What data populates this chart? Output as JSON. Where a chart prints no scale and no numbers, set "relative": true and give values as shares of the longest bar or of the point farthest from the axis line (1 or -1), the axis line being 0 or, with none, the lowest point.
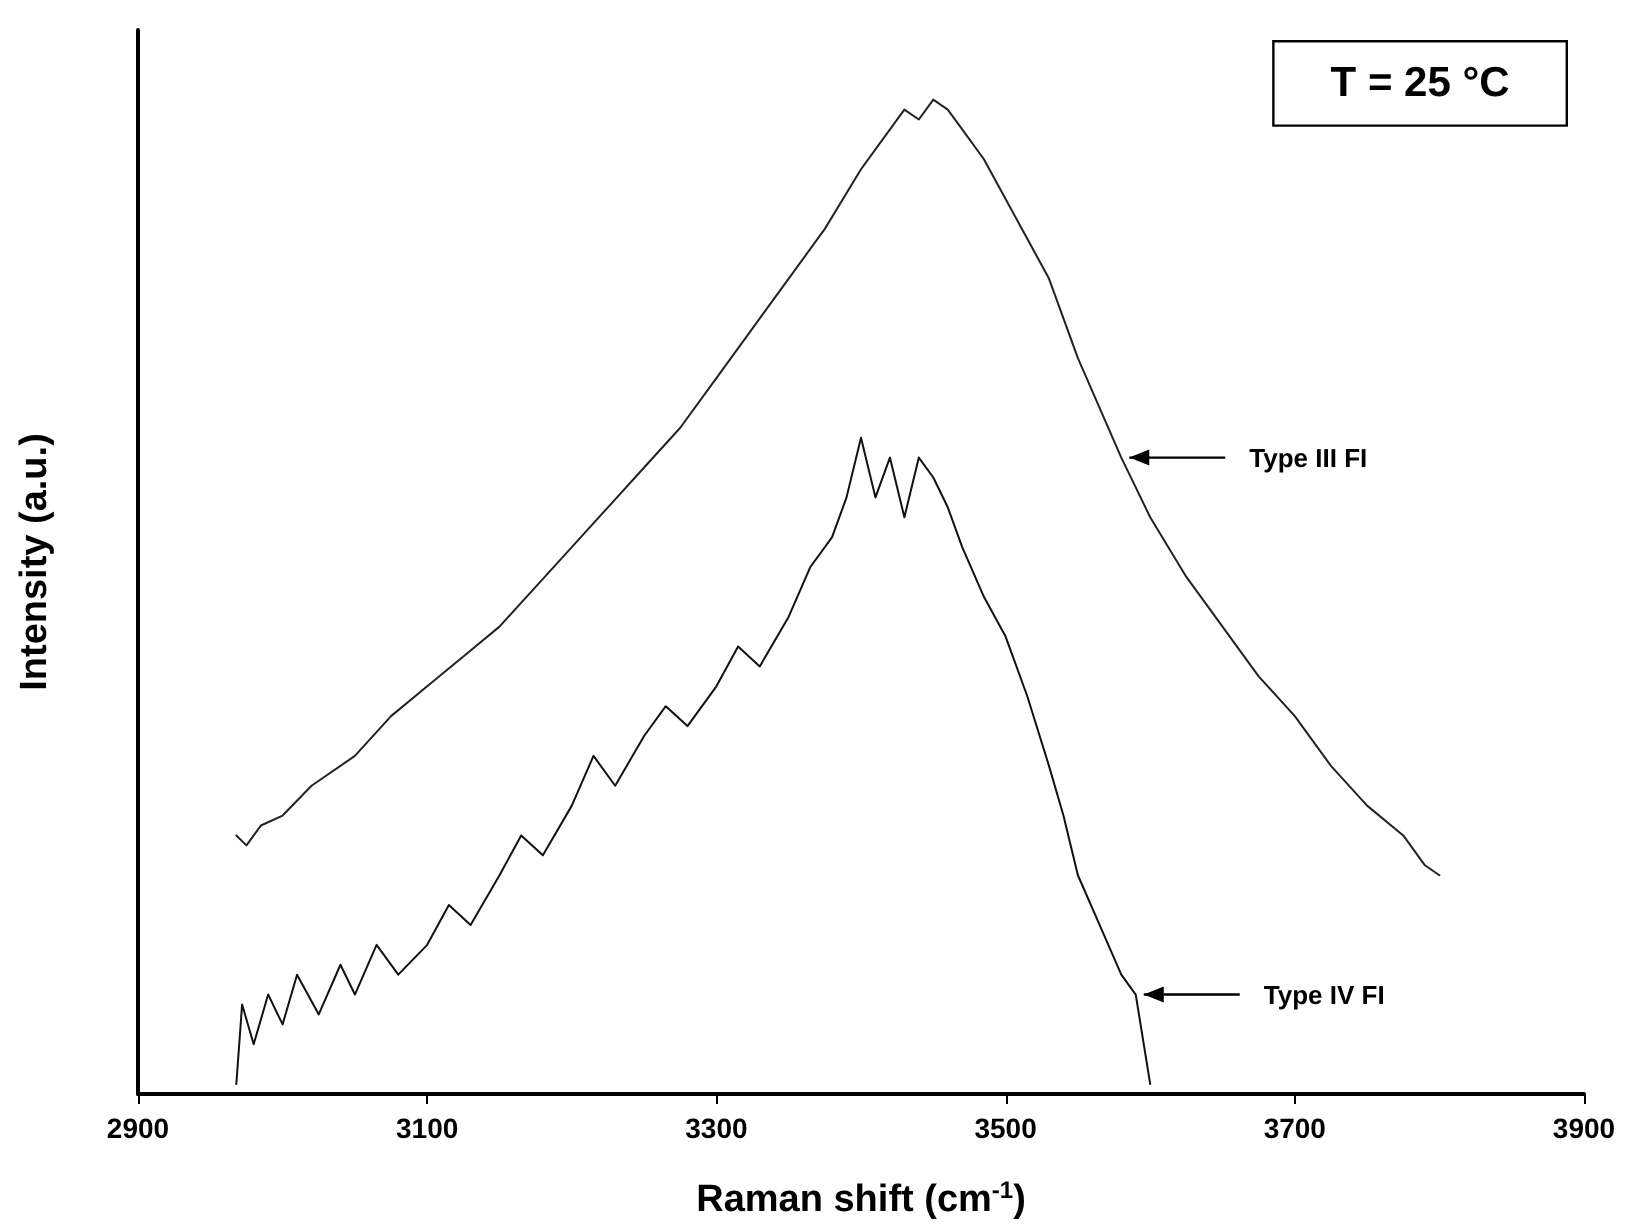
{
  "chart_data": {
    "type": "line",
    "xlabel": "Raman shift (cm$^{-1}$)",
    "ylabel": "Intensity (a.u.)",
    "relative": true,
    "xlim": [
      2900,
      3900
    ],
    "xticks": [
      2900,
      3100,
      3300,
      3500,
      3700,
      3900
    ],
    "grid": false,
    "marker": "none",
    "line_style": "solid",
    "annotations": [
      "T = 25 °C",
      {
        "text": "Type III FI",
        "x": 3580,
        "y": 0.64
      },
      {
        "text": "Type IV FI",
        "x": 3590,
        "y": 0.1
      }
    ],
    "series": [
      {
        "color": "#222222",
        "x": [
          2968,
          2975,
          2985,
          3000,
          3020,
          3050,
          3075,
          3100,
          3125,
          3150,
          3175,
          3200,
          3225,
          3250,
          3275,
          3300,
          3325,
          3350,
          3375,
          3400,
          3415,
          3430,
          3440,
          3450,
          3460,
          3470,
          3485,
          3500,
          3515,
          3530,
          3540,
          3550,
          3565,
          3580,
          3590,
          3600,
          3625,
          3650,
          3675,
          3700,
          3725,
          3750,
          3775,
          3790,
          3800
        ],
        "values": [
          0.26,
          0.25,
          0.27,
          0.28,
          0.31,
          0.34,
          0.38,
          0.41,
          0.44,
          0.47,
          0.51,
          0.55,
          0.59,
          0.63,
          0.67,
          0.72,
          0.77,
          0.82,
          0.87,
          0.93,
          0.96,
          0.99,
          0.98,
          1.0,
          0.99,
          0.97,
          0.94,
          0.9,
          0.86,
          0.82,
          0.78,
          0.74,
          0.69,
          0.64,
          0.61,
          0.58,
          0.52,
          0.47,
          0.42,
          0.38,
          0.33,
          0.29,
          0.26,
          0.23,
          0.22
        ]
      },
      {
        "color": "#111111",
        "x": [
          2968,
          2972,
          2980,
          2990,
          3000,
          3010,
          3025,
          3040,
          3050,
          3065,
          3080,
          3100,
          3115,
          3130,
          3150,
          3165,
          3180,
          3200,
          3215,
          3230,
          3250,
          3265,
          3280,
          3300,
          3315,
          3330,
          3350,
          3365,
          3380,
          3390,
          3400,
          3410,
          3420,
          3430,
          3440,
          3450,
          3460,
          3470,
          3485,
          3500,
          3515,
          3530,
          3540,
          3550,
          3565,
          3580,
          3590,
          3600
        ],
        "values": [
          0.01,
          0.09,
          0.05,
          0.1,
          0.07,
          0.12,
          0.08,
          0.13,
          0.1,
          0.15,
          0.12,
          0.15,
          0.19,
          0.17,
          0.22,
          0.26,
          0.24,
          0.29,
          0.34,
          0.31,
          0.36,
          0.39,
          0.37,
          0.41,
          0.45,
          0.43,
          0.48,
          0.53,
          0.56,
          0.6,
          0.66,
          0.6,
          0.64,
          0.58,
          0.64,
          0.62,
          0.59,
          0.55,
          0.5,
          0.46,
          0.4,
          0.33,
          0.28,
          0.22,
          0.17,
          0.12,
          0.1,
          0.01
        ]
      }
    ]
  }
}
